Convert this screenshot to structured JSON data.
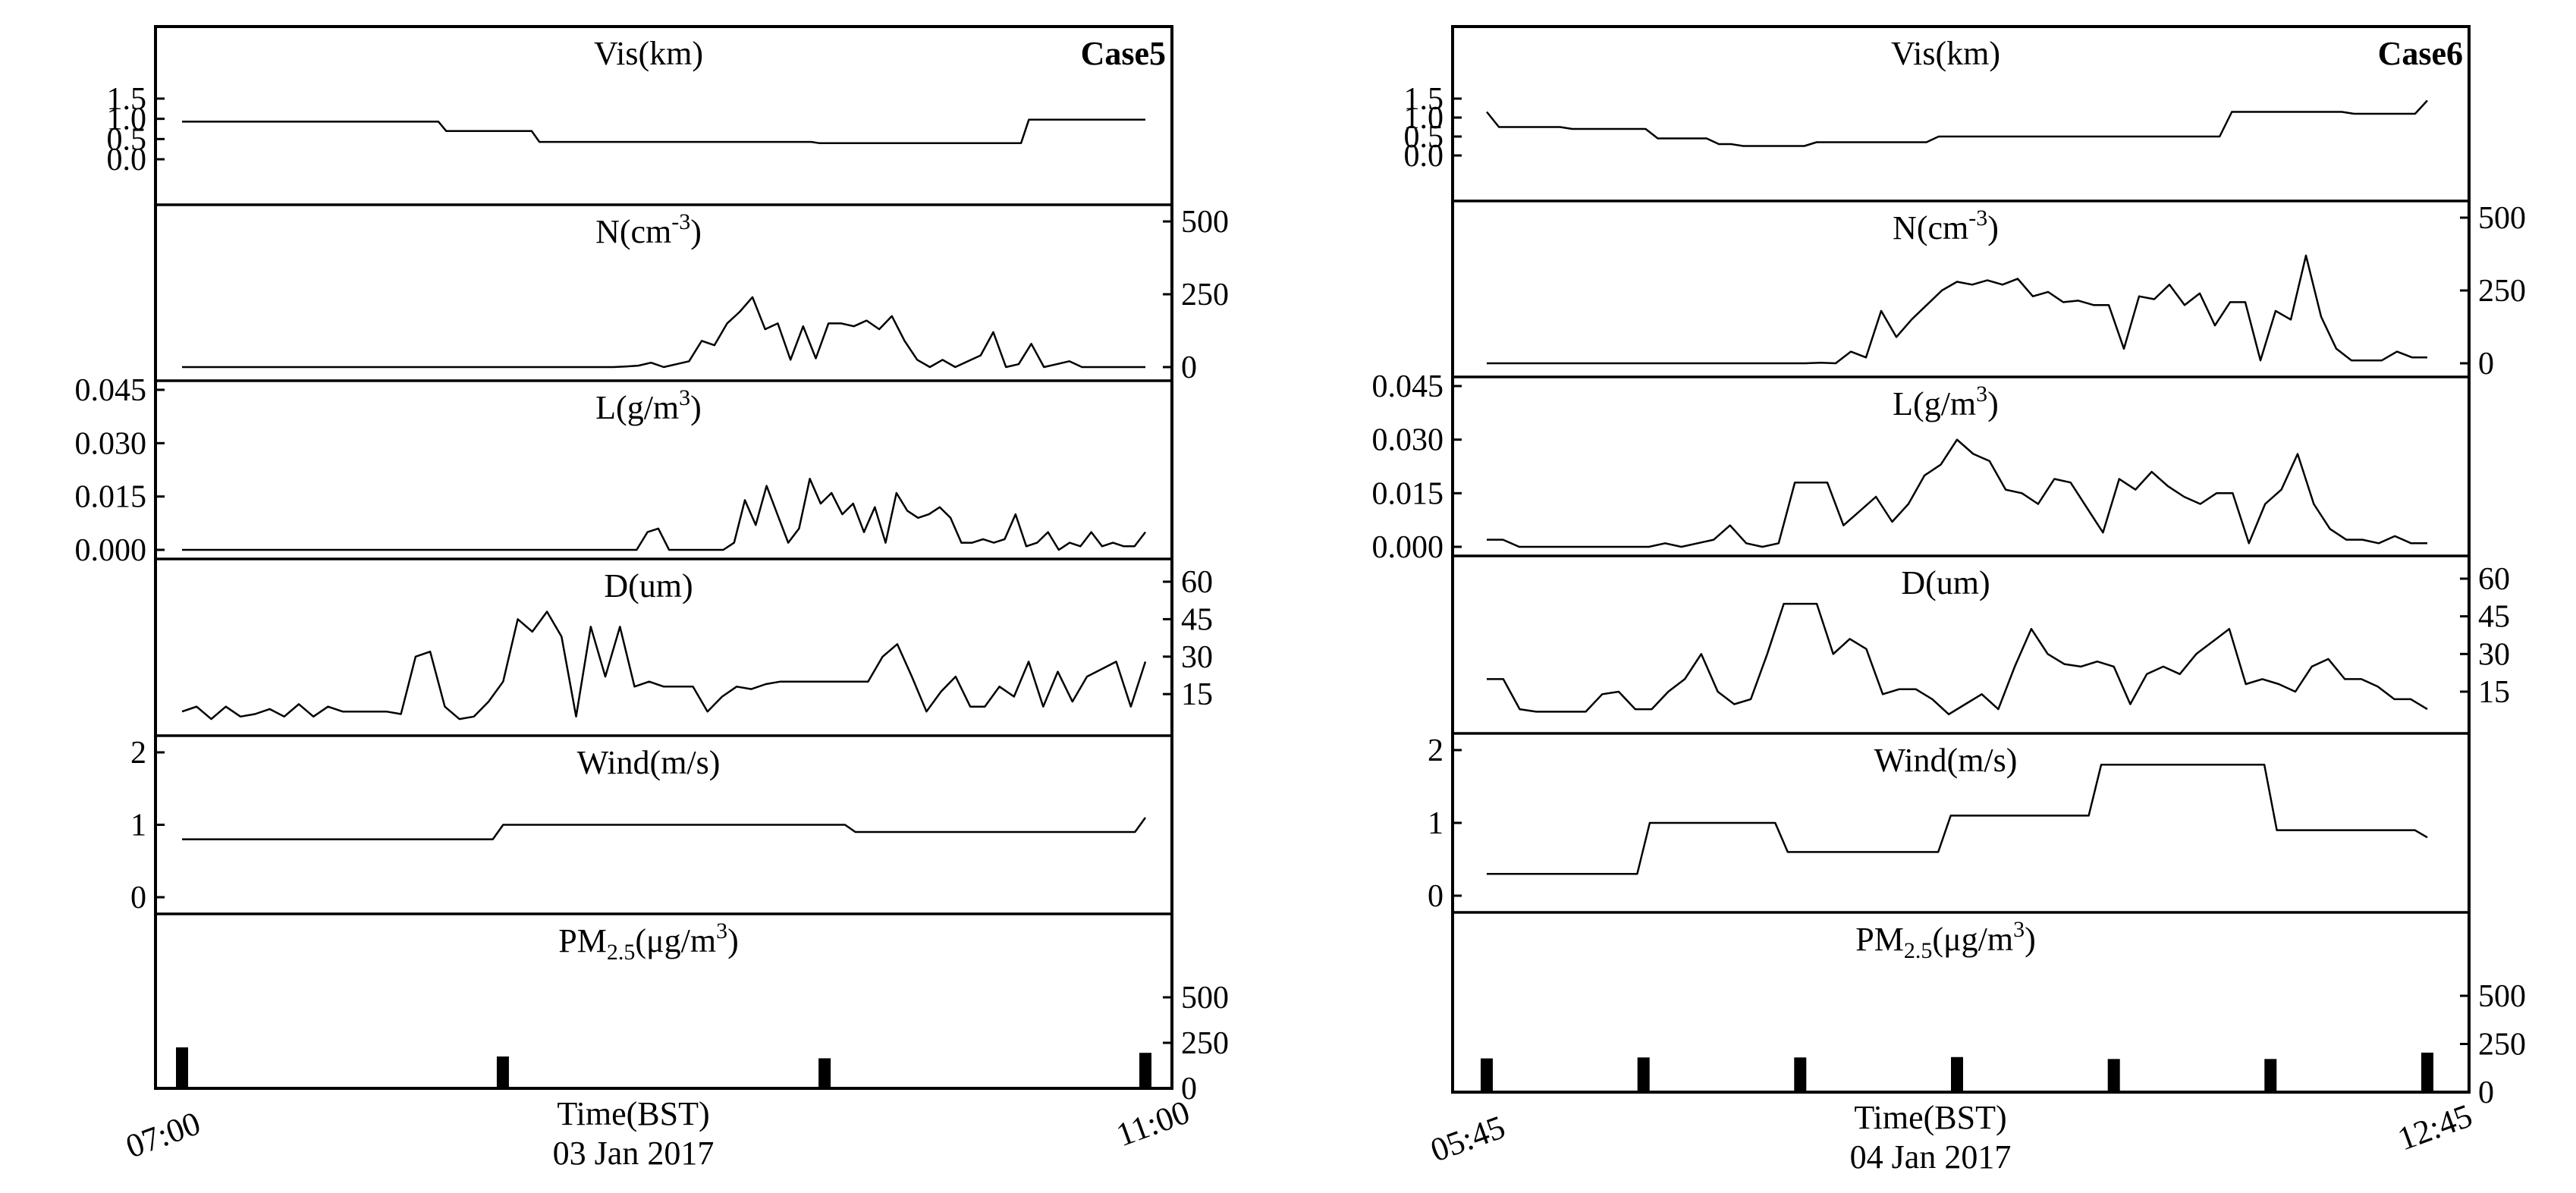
{
  "chart_data": [
    {
      "type": "line",
      "case_label": "Case5",
      "xlabel": "Time(BST)",
      "date_label": "03 Jan 2017",
      "x_tick_labels": [
        "07:00",
        "11:00"
      ],
      "x_range": [
        "07:00",
        "11:00"
      ],
      "panels": [
        {
          "key": "vis",
          "title": "Vis(km)",
          "axis_side": "left",
          "ylim": [
            0,
            1.5
          ],
          "ticks": [
            "0.0",
            "0.5",
            "1.0",
            "1.5"
          ],
          "values": [
            0.93,
            0.93,
            0.93,
            0.93,
            0.93,
            0.93,
            0.93,
            0.93,
            0.93,
            0.93,
            0.93,
            0.93,
            0.93,
            0.93,
            0.93,
            0.93,
            0.93,
            0.93,
            0.93,
            0.93,
            0.93,
            0.93,
            0.93,
            0.93,
            0.93,
            0.93,
            0.93,
            0.93,
            0.93,
            0.93,
            0.93,
            0.93,
            0.93,
            0.93,
            0.7,
            0.7,
            0.7,
            0.7,
            0.7,
            0.7,
            0.7,
            0.7,
            0.7,
            0.7,
            0.7,
            0.7,
            0.43,
            0.43,
            0.43,
            0.43,
            0.43,
            0.43,
            0.43,
            0.43,
            0.43,
            0.43,
            0.43,
            0.43,
            0.43,
            0.43,
            0.43,
            0.43,
            0.43,
            0.43,
            0.43,
            0.43,
            0.43,
            0.43,
            0.43,
            0.43,
            0.43,
            0.43,
            0.43,
            0.43,
            0.43,
            0.43,
            0.43,
            0.43,
            0.43,
            0.43,
            0.43,
            0.43,
            0.4,
            0.4,
            0.4,
            0.4,
            0.4,
            0.4,
            0.4,
            0.4,
            0.4,
            0.4,
            0.4,
            0.4,
            0.4,
            0.4,
            0.4,
            0.4,
            0.4,
            0.4,
            0.4,
            0.4,
            0.4,
            0.4,
            0.4,
            0.4,
            0.4,
            0.4,
            0.4,
            0.98,
            0.98,
            0.98,
            0.98,
            0.98,
            0.98,
            0.98,
            0.98,
            0.98,
            0.98,
            0.98,
            0.98,
            0.98,
            0.98,
            0.98,
            0.98
          ]
        },
        {
          "key": "n",
          "title": "N(cm",
          "title_sup": "-3",
          "title_tail": ")",
          "axis_side": "right",
          "ylim": [
            0,
            500
          ],
          "ticks": [
            "0",
            "250",
            "500"
          ],
          "values": [
            0,
            0,
            0,
            0,
            0,
            0,
            0,
            0,
            0,
            0,
            0,
            0,
            0,
            0,
            0,
            0,
            0,
            0,
            0,
            0,
            0,
            0,
            0,
            0,
            0,
            0,
            0,
            0,
            0,
            0,
            0,
            0,
            0,
            0,
            0,
            2,
            5,
            15,
            0,
            10,
            20,
            90,
            75,
            150,
            190,
            240,
            130,
            150,
            25,
            140,
            30,
            150,
            150,
            140,
            160,
            130,
            175,
            90,
            25,
            0,
            25,
            0,
            20,
            40,
            120,
            0,
            10,
            80,
            0,
            10,
            20,
            0,
            0,
            0,
            0,
            0,
            0
          ]
        },
        {
          "key": "l",
          "title": "L(g/m",
          "title_sup": "3",
          "title_tail": ")",
          "axis_side": "left",
          "ylim": [
            0,
            0.045
          ],
          "ticks": [
            "0.000",
            "0.015",
            "0.030",
            "0.045"
          ],
          "values": [
            0,
            0,
            0,
            0,
            0,
            0,
            0,
            0,
            0,
            0,
            0,
            0,
            0,
            0,
            0,
            0,
            0,
            0,
            0,
            0,
            0,
            0,
            0,
            0,
            0,
            0,
            0,
            0,
            0,
            0,
            0,
            0,
            0,
            0,
            0,
            0,
            0,
            0,
            0,
            0,
            0,
            0,
            0,
            0.005,
            0.006,
            0,
            0,
            0,
            0,
            0,
            0,
            0.002,
            0.014,
            0.007,
            0.018,
            0.01,
            0.002,
            0.006,
            0.02,
            0.013,
            0.016,
            0.01,
            0.013,
            0.005,
            0.012,
            0.002,
            0.016,
            0.011,
            0.009,
            0.01,
            0.012,
            0.009,
            0.002,
            0.002,
            0.003,
            0.002,
            0.003,
            0.01,
            0.001,
            0.002,
            0.005,
            0,
            0.002,
            0.001,
            0.005,
            0.001,
            0.002,
            0.001,
            0.001,
            0.005
          ]
        },
        {
          "key": "d",
          "title": "D(um)",
          "axis_side": "right",
          "ylim": [
            2,
            60
          ],
          "ticks": [
            "15",
            "30",
            "45",
            "60"
          ],
          "values": [
            8,
            10,
            5,
            10,
            6,
            7,
            9,
            6,
            11,
            6,
            10,
            8,
            8,
            8,
            8,
            7,
            30,
            32,
            10,
            5,
            6,
            12,
            20,
            45,
            40,
            48,
            38,
            6,
            42,
            22,
            42,
            18,
            20,
            18,
            18,
            18,
            8,
            14,
            18,
            17,
            19,
            20,
            20,
            20,
            20,
            20,
            20,
            20,
            30,
            35,
            22,
            8,
            16,
            22,
            10,
            10,
            18,
            14,
            28,
            10,
            24,
            12,
            22,
            25,
            28,
            10,
            28
          ]
        },
        {
          "key": "wind",
          "title": "Wind(m/s)",
          "axis_side": "left",
          "ylim": [
            0,
            2
          ],
          "ticks": [
            "0",
            "1",
            "2"
          ],
          "values": [
            0.8,
            0.8,
            0.8,
            0.8,
            0.8,
            0.8,
            0.8,
            0.8,
            0.8,
            0.8,
            0.8,
            0.8,
            0.8,
            0.8,
            0.8,
            0.8,
            0.8,
            0.8,
            0.8,
            0.8,
            0.8,
            0.8,
            0.8,
            0.8,
            0.8,
            0.8,
            0.8,
            0.8,
            0.8,
            0.8,
            0.8,
            1.0,
            1.0,
            1.0,
            1.0,
            1.0,
            1.0,
            1.0,
            1.0,
            1.0,
            1.0,
            1.0,
            1.0,
            1.0,
            1.0,
            1.0,
            1.0,
            1.0,
            1.0,
            1.0,
            1.0,
            1.0,
            1.0,
            1.0,
            1.0,
            1.0,
            1.0,
            1.0,
            1.0,
            1.0,
            1.0,
            1.0,
            1.0,
            1.0,
            1.0,
            0.9,
            0.9,
            0.9,
            0.9,
            0.9,
            0.9,
            0.9,
            0.9,
            0.9,
            0.9,
            0.9,
            0.9,
            0.9,
            0.9,
            0.9,
            0.9,
            0.9,
            0.9,
            0.9,
            0.9,
            0.9,
            0.9,
            0.9,
            0.9,
            0.9,
            0.9,
            0.9,
            0.9,
            1.1
          ]
        },
        {
          "key": "pm",
          "title": "PM",
          "title_sub": "2.5",
          "title_tail": "(μg/m",
          "title_sup": "3",
          "title_end": ")",
          "axis_side": "right",
          "ylim": [
            0,
            500
          ],
          "ticks": [
            "0",
            "250",
            "500"
          ],
          "kind": "bar",
          "x": [
            0.0,
            0.333,
            0.667,
            1.0
          ],
          "values": [
            225,
            175,
            165,
            195
          ]
        }
      ]
    },
    {
      "type": "line",
      "case_label": "Case6",
      "xlabel": "Time(BST)",
      "date_label": "04 Jan 2017",
      "x_tick_labels": [
        "05:45",
        "12:45"
      ],
      "x_range": [
        "05:45",
        "12:45"
      ],
      "panels": [
        {
          "key": "vis",
          "title": "Vis(km)",
          "axis_side": "left",
          "ylim": [
            0,
            1.5
          ],
          "ticks": [
            "0.0",
            "0.5",
            "1.0",
            "1.5"
          ],
          "values": [
            1.15,
            0.75,
            0.75,
            0.75,
            0.75,
            0.75,
            0.75,
            0.7,
            0.7,
            0.7,
            0.7,
            0.7,
            0.7,
            0.7,
            0.45,
            0.45,
            0.45,
            0.45,
            0.45,
            0.3,
            0.3,
            0.25,
            0.25,
            0.25,
            0.25,
            0.25,
            0.25,
            0.35,
            0.35,
            0.35,
            0.35,
            0.35,
            0.35,
            0.35,
            0.35,
            0.35,
            0.35,
            0.5,
            0.5,
            0.5,
            0.5,
            0.5,
            0.5,
            0.5,
            0.5,
            0.5,
            0.5,
            0.5,
            0.5,
            0.5,
            0.5,
            0.5,
            0.5,
            0.5,
            0.5,
            0.5,
            0.5,
            0.5,
            0.5,
            0.5,
            0.5,
            1.15,
            1.15,
            1.15,
            1.15,
            1.15,
            1.15,
            1.15,
            1.15,
            1.15,
            1.15,
            1.1,
            1.1,
            1.1,
            1.1,
            1.1,
            1.1,
            1.45
          ]
        },
        {
          "key": "n",
          "title": "N(cm",
          "title_sup": "-3",
          "title_tail": ")",
          "axis_side": "right",
          "ylim": [
            0,
            500
          ],
          "ticks": [
            "0",
            "250",
            "500"
          ],
          "values": [
            0,
            0,
            0,
            0,
            0,
            0,
            0,
            0,
            0,
            0,
            0,
            0,
            0,
            0,
            0,
            0,
            0,
            0,
            0,
            0,
            0,
            0,
            2,
            0,
            40,
            20,
            180,
            90,
            150,
            200,
            250,
            280,
            270,
            285,
            270,
            290,
            230,
            245,
            210,
            215,
            200,
            200,
            50,
            230,
            220,
            270,
            200,
            240,
            130,
            210,
            210,
            10,
            180,
            150,
            370,
            160,
            50,
            10,
            10,
            10,
            40,
            20,
            20
          ]
        },
        {
          "key": "l",
          "title": "L(g/m",
          "title_sup": "3",
          "title_tail": ")",
          "axis_side": "left",
          "ylim": [
            0,
            0.045
          ],
          "ticks": [
            "0.000",
            "0.015",
            "0.030",
            "0.045"
          ],
          "values": [
            0.002,
            0.002,
            0,
            0,
            0,
            0,
            0,
            0,
            0,
            0,
            0,
            0.001,
            0,
            0.001,
            0.002,
            0.006,
            0.001,
            0,
            0.001,
            0.018,
            0.018,
            0.018,
            0.006,
            0.01,
            0.014,
            0.007,
            0.012,
            0.02,
            0.023,
            0.03,
            0.026,
            0.024,
            0.016,
            0.015,
            0.012,
            0.019,
            0.018,
            0.011,
            0.004,
            0.019,
            0.016,
            0.021,
            0.017,
            0.014,
            0.012,
            0.015,
            0.015,
            0.001,
            0.012,
            0.016,
            0.026,
            0.012,
            0.005,
            0.002,
            0.002,
            0.001,
            0.003,
            0.001,
            0.001
          ]
        },
        {
          "key": "d",
          "title": "D(um)",
          "axis_side": "right",
          "ylim": [
            2,
            60
          ],
          "ticks": [
            "15",
            "30",
            "45",
            "60"
          ],
          "values": [
            20,
            20,
            8,
            7,
            7,
            7,
            7,
            14,
            15,
            8,
            8,
            15,
            20,
            30,
            15,
            10,
            12,
            30,
            50,
            50,
            50,
            30,
            36,
            32,
            14,
            16,
            16,
            12,
            6,
            10,
            14,
            8,
            25,
            40,
            30,
            26,
            25,
            27,
            25,
            10,
            22,
            25,
            22,
            30,
            35,
            40,
            18,
            20,
            18,
            15,
            25,
            28,
            20,
            20,
            17,
            12,
            12,
            8
          ]
        },
        {
          "key": "wind",
          "title": "Wind(m/s)",
          "axis_side": "left",
          "ylim": [
            0,
            2
          ],
          "ticks": [
            "0",
            "1",
            "2"
          ],
          "values": [
            0.3,
            0.3,
            0.3,
            0.3,
            0.3,
            0.3,
            0.3,
            0.3,
            0.3,
            0.3,
            0.3,
            0.3,
            0.3,
            1.0,
            1.0,
            1.0,
            1.0,
            1.0,
            1.0,
            1.0,
            1.0,
            1.0,
            1.0,
            1.0,
            0.6,
            0.6,
            0.6,
            0.6,
            0.6,
            0.6,
            0.6,
            0.6,
            0.6,
            0.6,
            0.6,
            0.6,
            0.6,
            1.1,
            1.1,
            1.1,
            1.1,
            1.1,
            1.1,
            1.1,
            1.1,
            1.1,
            1.1,
            1.1,
            1.1,
            1.8,
            1.8,
            1.8,
            1.8,
            1.8,
            1.8,
            1.8,
            1.8,
            1.8,
            1.8,
            1.8,
            1.8,
            1.8,
            1.8,
            0.9,
            0.9,
            0.9,
            0.9,
            0.9,
            0.9,
            0.9,
            0.9,
            0.9,
            0.9,
            0.9,
            0.9,
            0.8
          ]
        },
        {
          "key": "pm",
          "title": "PM",
          "title_sub": "2.5",
          "title_tail": "(μg/m",
          "title_sup": "3",
          "title_end": ")",
          "axis_side": "right",
          "ylim": [
            0,
            500
          ],
          "ticks": [
            "0",
            "250",
            "500"
          ],
          "kind": "bar",
          "x": [
            0.0,
            0.1667,
            0.3333,
            0.5,
            0.6667,
            0.8333,
            1.0
          ],
          "values": [
            175,
            180,
            180,
            182,
            172,
            172,
            205
          ]
        }
      ]
    }
  ]
}
